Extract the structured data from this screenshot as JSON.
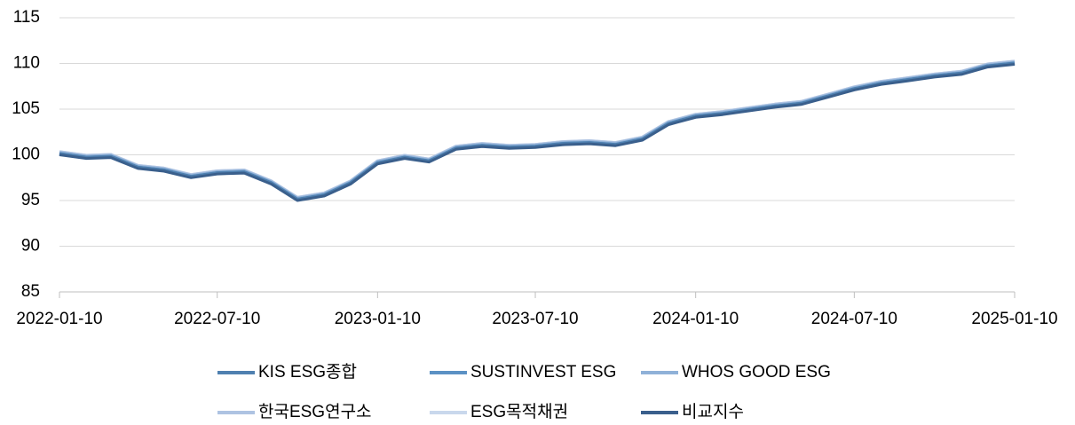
{
  "chart_data": {
    "type": "line",
    "x": [
      "2022-01-10",
      "2022-02-10",
      "2022-03-10",
      "2022-04-10",
      "2022-05-10",
      "2022-06-10",
      "2022-07-10",
      "2022-08-10",
      "2022-09-10",
      "2022-10-10",
      "2022-11-10",
      "2022-12-10",
      "2023-01-10",
      "2023-02-10",
      "2023-03-10",
      "2023-04-10",
      "2023-05-10",
      "2023-06-10",
      "2023-07-10",
      "2023-08-10",
      "2023-09-10",
      "2023-10-10",
      "2023-11-10",
      "2023-12-10",
      "2024-01-10",
      "2024-02-10",
      "2024-03-10",
      "2024-04-10",
      "2024-05-10",
      "2024-06-10",
      "2024-07-10",
      "2024-08-10",
      "2024-09-10",
      "2024-10-10",
      "2024-11-10",
      "2024-12-10",
      "2025-01-10"
    ],
    "series": [
      {
        "name": "ESG목적채권",
        "color": "#c9d8ec",
        "values": [
          100.3,
          99.9,
          100.0,
          98.8,
          98.5,
          97.8,
          98.2,
          98.3,
          97.1,
          95.3,
          95.8,
          97.1,
          99.3,
          99.9,
          99.5,
          100.9,
          101.2,
          101.0,
          101.1,
          101.4,
          101.5,
          101.3,
          101.9,
          103.6,
          104.4,
          104.7,
          105.1,
          105.5,
          105.8,
          106.6,
          107.4,
          108.0,
          108.4,
          108.8,
          109.1,
          109.9,
          110.2
        ]
      },
      {
        "name": "한국ESG연구소",
        "color": "#aec3e2",
        "values": [
          100.3,
          99.9,
          100.0,
          98.8,
          98.5,
          97.8,
          98.2,
          98.3,
          97.1,
          95.3,
          95.8,
          97.1,
          99.3,
          99.9,
          99.5,
          100.9,
          101.2,
          101.0,
          101.1,
          101.4,
          101.5,
          101.3,
          101.9,
          103.6,
          104.4,
          104.7,
          105.1,
          105.5,
          105.8,
          106.6,
          107.4,
          108.0,
          108.4,
          108.8,
          109.1,
          109.9,
          110.2
        ]
      },
      {
        "name": "WHOS GOOD ESG",
        "color": "#8fb1d8",
        "values": [
          100.2,
          99.8,
          99.9,
          98.7,
          98.4,
          97.7,
          98.1,
          98.2,
          97.0,
          95.2,
          95.7,
          97.0,
          99.2,
          99.8,
          99.4,
          100.8,
          101.1,
          100.9,
          101.0,
          101.3,
          101.4,
          101.2,
          101.8,
          103.5,
          104.3,
          104.6,
          105.0,
          105.4,
          105.7,
          106.5,
          107.3,
          107.9,
          108.3,
          108.7,
          109.0,
          109.8,
          110.1
        ]
      },
      {
        "name": "SUSTINVEST ESG",
        "color": "#5b91c4",
        "values": [
          100.1,
          99.7,
          99.8,
          98.6,
          98.3,
          97.6,
          98.0,
          98.1,
          96.9,
          95.1,
          95.6,
          96.9,
          99.1,
          99.7,
          99.3,
          100.7,
          101.0,
          100.8,
          100.9,
          101.2,
          101.3,
          101.1,
          101.7,
          103.4,
          104.2,
          104.5,
          104.9,
          105.3,
          105.6,
          106.4,
          107.2,
          107.8,
          108.2,
          108.6,
          108.9,
          109.7,
          110.0
        ]
      },
      {
        "name": "KIS ESG종합",
        "color": "#4f80b0",
        "values": [
          100.1,
          99.7,
          99.8,
          98.6,
          98.3,
          97.6,
          98.0,
          98.1,
          96.9,
          95.1,
          95.6,
          96.9,
          99.1,
          99.7,
          99.3,
          100.7,
          101.0,
          100.8,
          100.9,
          101.2,
          101.3,
          101.1,
          101.7,
          103.4,
          104.2,
          104.5,
          104.9,
          105.3,
          105.6,
          106.4,
          107.2,
          107.8,
          108.2,
          108.6,
          108.9,
          109.7,
          110.0
        ]
      },
      {
        "name": "비교지수",
        "color": "#3a5f8c",
        "values": [
          100.0,
          99.6,
          99.7,
          98.5,
          98.2,
          97.5,
          97.9,
          98.0,
          96.8,
          95.0,
          95.5,
          96.8,
          99.0,
          99.6,
          99.2,
          100.6,
          100.9,
          100.7,
          100.8,
          101.1,
          101.2,
          101.0,
          101.6,
          103.3,
          104.1,
          104.4,
          104.8,
          105.2,
          105.5,
          106.3,
          107.1,
          107.7,
          108.1,
          108.5,
          108.8,
          109.6,
          109.9
        ]
      }
    ],
    "legend_order": [
      4,
      3,
      2,
      1,
      0,
      5
    ],
    "xlim": [
      "2022-01-10",
      "2025-01-10"
    ],
    "xticks": [
      "2022-01-10",
      "2022-07-10",
      "2023-01-10",
      "2023-07-10",
      "2024-01-10",
      "2024-07-10",
      "2025-01-10"
    ],
    "ylim": [
      85,
      115
    ],
    "yticks": [
      85,
      90,
      95,
      100,
      105,
      110,
      115
    ],
    "grid": true
  }
}
